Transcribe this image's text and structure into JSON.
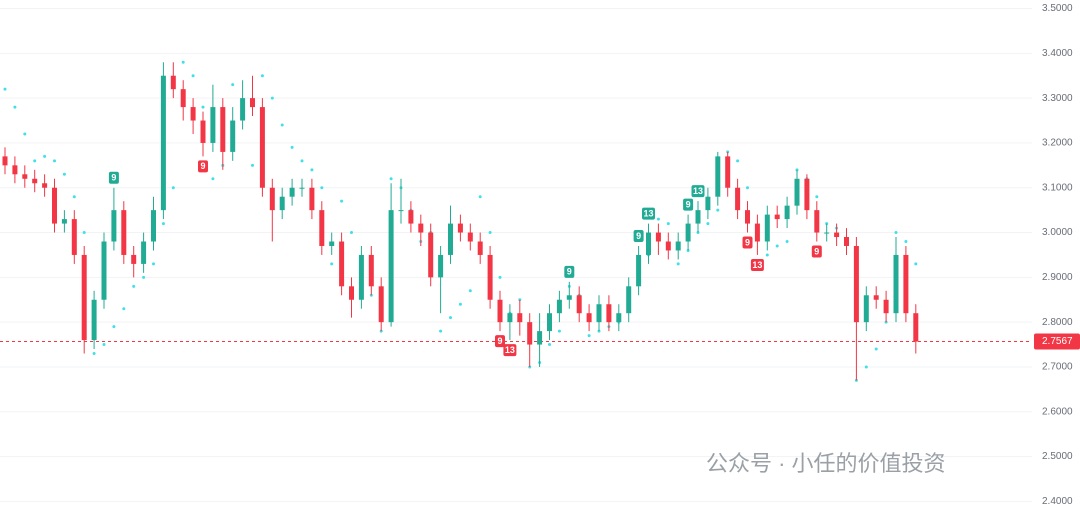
{
  "chart_data": {
    "type": "candlestick",
    "up_color": "#22ab94",
    "down_color": "#f23645",
    "sar_color": "#3fe0e8",
    "ylim": [
      2.383,
      3.519
    ],
    "yticks": [
      {
        "value": 2.4,
        "label": "2.4000"
      },
      {
        "value": 2.5,
        "label": "2.5000"
      },
      {
        "value": 2.6,
        "label": "2.6000"
      },
      {
        "value": 2.7,
        "label": "2.7000"
      },
      {
        "value": 2.8,
        "label": "2.8000"
      },
      {
        "value": 2.9,
        "label": "2.9000"
      },
      {
        "value": 3.0,
        "label": "3.0000"
      },
      {
        "value": 3.1,
        "label": "3.1000"
      },
      {
        "value": 3.2,
        "label": "3.2000"
      },
      {
        "value": 3.3,
        "label": "3.3000"
      },
      {
        "value": 3.4,
        "label": "3.4000"
      },
      {
        "value": 3.5,
        "label": "3.5000"
      }
    ],
    "grid": true,
    "open": [
      3.17,
      3.15,
      3.13,
      3.12,
      3.11,
      3.1,
      3.02,
      3.03,
      2.95,
      2.76,
      2.85,
      2.98,
      3.05,
      2.95,
      2.93,
      2.98,
      3.05,
      3.35,
      3.32,
      3.28,
      3.25,
      3.2,
      3.28,
      3.18,
      3.25,
      3.3,
      3.28,
      3.1,
      3.05,
      3.08,
      3.1,
      3.1,
      3.05,
      2.97,
      2.98,
      2.88,
      2.85,
      2.95,
      2.88,
      2.8,
      3.05,
      3.05,
      3.02,
      3.0,
      2.9,
      2.95,
      3.02,
      3.0,
      2.98,
      2.95,
      2.85,
      2.8,
      2.82,
      2.8,
      2.75,
      2.78,
      2.82,
      2.85,
      2.86,
      2.82,
      2.8,
      2.84,
      2.8,
      2.82,
      2.88,
      2.95,
      3.0,
      2.98,
      2.96,
      2.98,
      3.02,
      3.05,
      3.08,
      3.17,
      3.1,
      3.05,
      3.02,
      2.98,
      3.04,
      3.03,
      3.06,
      3.12,
      3.05,
      3.0,
      3.0,
      2.99,
      2.97,
      2.8,
      2.86,
      2.85,
      2.82,
      2.95,
      2.82
    ],
    "high": [
      3.19,
      3.17,
      3.15,
      3.14,
      3.13,
      3.12,
      3.05,
      3.05,
      2.97,
      2.87,
      3.0,
      3.1,
      3.07,
      2.97,
      3.0,
      3.08,
      3.38,
      3.38,
      3.34,
      3.3,
      3.27,
      3.33,
      3.3,
      3.28,
      3.34,
      3.35,
      3.3,
      3.12,
      3.1,
      3.12,
      3.12,
      3.12,
      3.07,
      3.0,
      3.0,
      2.9,
      2.97,
      2.97,
      2.9,
      3.11,
      3.12,
      3.07,
      3.04,
      3.02,
      2.97,
      3.06,
      3.04,
      3.02,
      3.0,
      2.97,
      2.87,
      2.84,
      2.85,
      2.82,
      2.82,
      2.84,
      2.87,
      2.89,
      2.88,
      2.84,
      2.86,
      2.86,
      2.84,
      2.9,
      2.97,
      3.02,
      3.02,
      3.0,
      3.0,
      3.04,
      3.07,
      3.1,
      3.18,
      3.18,
      3.12,
      3.07,
      3.04,
      3.06,
      3.06,
      3.08,
      3.14,
      3.13,
      3.07,
      3.02,
      3.02,
      3.01,
      2.99,
      2.88,
      2.88,
      2.87,
      2.99,
      2.97,
      2.84
    ],
    "low": [
      3.13,
      3.11,
      3.1,
      3.09,
      3.08,
      3.0,
      3.0,
      2.93,
      2.73,
      2.74,
      2.83,
      2.96,
      2.93,
      2.9,
      2.91,
      2.96,
      3.03,
      3.3,
      3.25,
      3.22,
      3.17,
      3.18,
      3.14,
      3.16,
      3.23,
      3.26,
      3.08,
      2.98,
      3.03,
      3.06,
      3.08,
      3.03,
      2.95,
      2.95,
      2.86,
      2.81,
      2.83,
      2.86,
      2.78,
      2.79,
      3.02,
      3.0,
      2.97,
      2.88,
      2.82,
      2.93,
      2.98,
      2.96,
      2.93,
      2.83,
      2.78,
      2.76,
      2.77,
      2.7,
      2.7,
      2.76,
      2.8,
      2.83,
      2.8,
      2.78,
      2.78,
      2.78,
      2.78,
      2.8,
      2.86,
      2.93,
      2.95,
      2.94,
      2.94,
      2.96,
      3.0,
      3.03,
      3.06,
      3.08,
      3.03,
      3.0,
      2.95,
      2.96,
      3.01,
      3.01,
      3.04,
      3.03,
      2.98,
      2.98,
      2.97,
      2.95,
      2.67,
      2.78,
      2.83,
      2.8,
      2.8,
      2.8,
      2.73
    ],
    "close": [
      3.15,
      3.13,
      3.12,
      3.11,
      3.1,
      3.02,
      3.03,
      2.95,
      2.76,
      2.85,
      2.98,
      3.05,
      2.95,
      2.93,
      2.98,
      3.05,
      3.35,
      3.32,
      3.28,
      3.25,
      3.2,
      3.28,
      3.18,
      3.25,
      3.3,
      3.28,
      3.1,
      3.05,
      3.08,
      3.1,
      3.1,
      3.05,
      2.97,
      2.98,
      2.88,
      2.85,
      2.95,
      2.88,
      2.8,
      3.05,
      3.05,
      3.02,
      3.0,
      2.9,
      2.95,
      3.02,
      3.0,
      2.98,
      2.95,
      2.85,
      2.8,
      2.82,
      2.8,
      2.75,
      2.78,
      2.82,
      2.85,
      2.86,
      2.82,
      2.8,
      2.84,
      2.8,
      2.82,
      2.88,
      2.95,
      3.0,
      2.98,
      2.96,
      2.98,
      3.02,
      3.05,
      3.08,
      3.17,
      3.1,
      3.05,
      3.02,
      2.98,
      3.04,
      3.03,
      3.06,
      3.12,
      3.05,
      3.0,
      3.0,
      2.99,
      2.97,
      2.8,
      2.86,
      2.85,
      2.82,
      2.95,
      2.82,
      2.7567
    ],
    "sar": [
      3.32,
      3.28,
      3.22,
      3.16,
      3.17,
      3.16,
      3.13,
      3.08,
      3.0,
      2.73,
      2.75,
      2.79,
      2.83,
      2.88,
      2.9,
      2.93,
      3.02,
      3.1,
      3.38,
      3.35,
      3.28,
      3.12,
      3.15,
      3.33,
      3.28,
      3.15,
      3.35,
      3.3,
      3.24,
      3.19,
      3.16,
      3.14,
      3.1,
      2.93,
      3.07,
      3.0,
      2.92,
      2.86,
      2.78,
      3.12,
      3.1,
      3.05,
      2.98,
      3.0,
      2.78,
      2.81,
      2.84,
      2.87,
      3.08,
      3.0,
      2.9,
      2.82,
      2.85,
      2.7,
      2.71,
      2.75,
      2.78,
      2.88,
      2.86,
      2.77,
      2.78,
      2.79,
      2.8,
      2.85,
      2.91,
      2.95,
      3.03,
      3.02,
      2.93,
      2.96,
      3.0,
      3.02,
      3.05,
      3.18,
      3.16,
      3.1,
      3.0,
      2.95,
      2.97,
      2.98,
      3.14,
      3.12,
      3.08,
      3.02,
      3.01,
      2.98,
      2.67,
      2.7,
      2.74,
      2.8,
      3.0,
      2.98,
      2.93
    ],
    "annotations": [
      {
        "label": "9",
        "candle": 11,
        "color": "#22ab94"
      },
      {
        "label": "9",
        "candle": 20,
        "color": "#f23645"
      },
      {
        "label": "9",
        "candle": 50,
        "color": "#f23645"
      },
      {
        "label": "13",
        "candle": 51,
        "color": "#f23645"
      },
      {
        "label": "9",
        "candle": 57,
        "color": "#22ab94"
      },
      {
        "label": "9",
        "candle": 64,
        "color": "#22ab94"
      },
      {
        "label": "13",
        "candle": 65,
        "color": "#22ab94"
      },
      {
        "label": "9",
        "candle": 69,
        "color": "#22ab94"
      },
      {
        "label": "13",
        "candle": 70,
        "color": "#22ab94"
      },
      {
        "label": "9",
        "candle": 75,
        "color": "#f23645"
      },
      {
        "label": "13",
        "candle": 76,
        "color": "#f23645"
      },
      {
        "label": "9",
        "candle": 82,
        "color": "#f23645"
      }
    ],
    "last_price": 2.7567,
    "watermark": "公众号 · 小任的价值投资"
  }
}
